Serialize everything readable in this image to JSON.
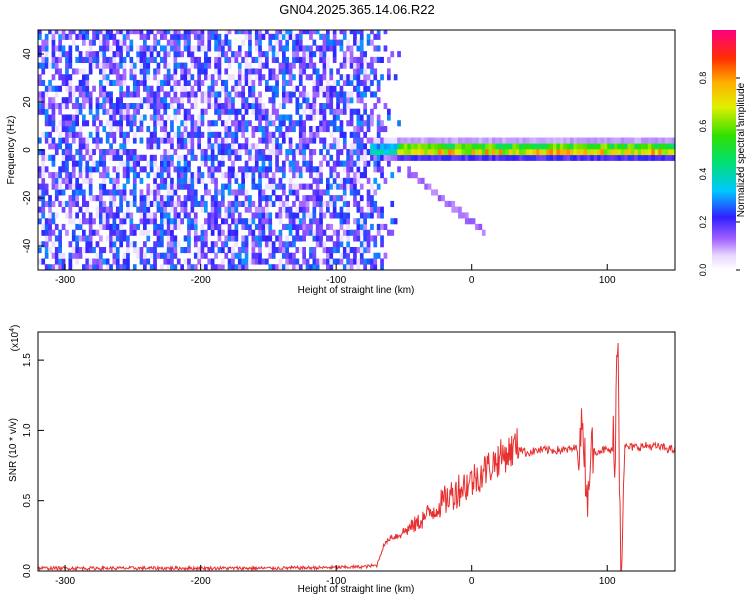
{
  "title": "GN04.2025.365.14.06.R22",
  "colors": {
    "snr_line": "#e83030",
    "axis": "#000000",
    "background": "#ffffff"
  },
  "chart_data": [
    {
      "type": "heatmap",
      "xlabel": "Height of straight line (km)",
      "ylabel": "Frequency (Hz)",
      "xlim": [
        -320,
        150
      ],
      "ylim": [
        -50,
        50
      ],
      "x_ticks": [
        -300,
        -200,
        -100,
        0,
        100
      ],
      "y_ticks": [
        -40,
        -20,
        0,
        20,
        40
      ],
      "colorbar": {
        "label": "Normalized spectral amplitude",
        "range": [
          0,
          1
        ],
        "ticks": [
          "0.0",
          "0.2",
          "0.4",
          "0.6",
          "0.8"
        ],
        "tick_values": [
          0,
          0.2,
          0.4,
          0.6,
          0.8
        ]
      },
      "regions": {
        "noise_x_range": [
          -320,
          -53
        ],
        "signal_x_range": [
          -75,
          150
        ],
        "signal_center_hz": 0,
        "signal_halfwidth_hz": 3.5,
        "noise_amplitude": 0.2,
        "signal_peak_amplitude": 0.9
      }
    },
    {
      "type": "line",
      "xlabel": "Height of straight line (km)",
      "ylabel": "SNR (10 * v/v)",
      "y_scale_label": "(x10",
      "y_scale_exp": "4",
      "y_scale_close": ")",
      "xlim": [
        -320,
        150
      ],
      "ylim": [
        0,
        1.7
      ],
      "x_ticks": [
        -300,
        -200,
        -100,
        0,
        100
      ],
      "y_ticks": [
        "0.0",
        "0.5",
        "1.0",
        "1.5"
      ],
      "y_tick_values": [
        0,
        0.5,
        1.0,
        1.5
      ],
      "series": [
        {
          "x": [
            -320,
            -250,
            -200,
            -150,
            -100,
            -80,
            -70,
            -65,
            -60,
            -55,
            -50,
            -40,
            -30,
            -20,
            -10,
            0,
            10,
            20,
            30,
            33,
            40,
            50,
            60,
            70,
            80,
            82,
            85,
            88,
            90,
            95,
            100,
            105,
            108,
            110,
            113,
            120,
            130,
            140,
            150
          ],
          "values": [
            0.02,
            0.02,
            0.02,
            0.02,
            0.025,
            0.03,
            0.04,
            0.18,
            0.24,
            0.25,
            0.28,
            0.34,
            0.42,
            0.5,
            0.58,
            0.64,
            0.72,
            0.8,
            0.86,
            0.9,
            0.84,
            0.86,
            0.86,
            0.86,
            0.88,
            1.1,
            0.5,
            0.88,
            0.85,
            0.86,
            0.86,
            0.85,
            1.65,
            0.1,
            0.88,
            0.88,
            0.89,
            0.88,
            0.86
          ]
        }
      ]
    }
  ]
}
